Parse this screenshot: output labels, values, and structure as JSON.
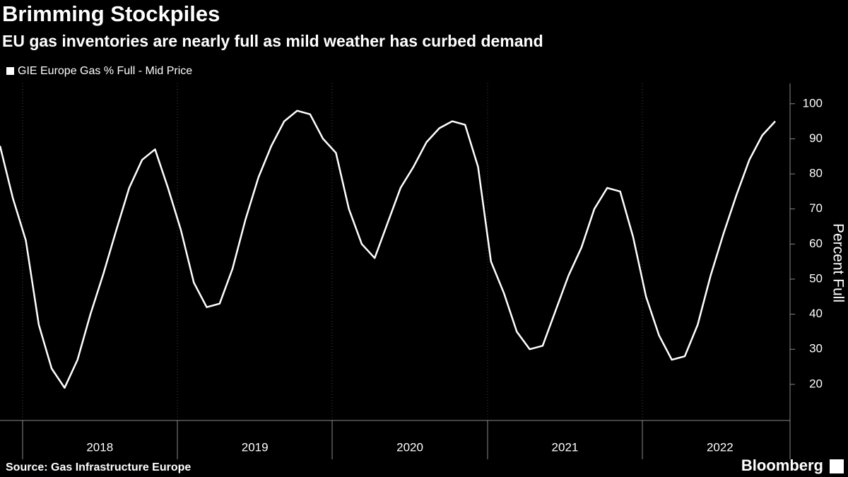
{
  "chart_data": {
    "type": "line",
    "title": "Brimming Stockpiles",
    "subtitle": "EU gas inventories are nearly full as mild weather has curbed demand",
    "y_label": "Percent Full",
    "source": "Source: Gas Infrastructure Europe",
    "brand": "Bloomberg",
    "categories": [
      null,
      null,
      null,
      null,
      null,
      null,
      null,
      null,
      "2018",
      null,
      null,
      null,
      null,
      null,
      null,
      null,
      null,
      null,
      null,
      null,
      "2019",
      null,
      null,
      null,
      null,
      null,
      null,
      null,
      null,
      null,
      null,
      null,
      "2020",
      null,
      null,
      null,
      null,
      null,
      null,
      null,
      null,
      null,
      null,
      null,
      "2021",
      null,
      null,
      null,
      null,
      null,
      null,
      null,
      null,
      null,
      null,
      null,
      "2022",
      null,
      null,
      null,
      null
    ],
    "series": [
      {
        "name": "GIE Europe Gas % Full - Mid Price",
        "color": "#ffffff",
        "values": [
          88,
          73,
          61,
          37,
          24.5,
          19,
          27,
          40,
          51.5,
          64,
          76,
          84,
          87,
          76,
          64,
          49,
          42,
          43,
          53,
          67,
          79,
          88,
          95,
          98,
          97,
          90,
          86,
          70,
          60,
          56,
          66,
          76,
          82,
          89,
          93,
          95,
          94,
          82,
          55,
          46,
          35,
          30,
          31,
          41,
          51,
          59,
          70,
          76,
          75,
          62,
          45,
          34,
          27,
          28,
          37,
          51,
          63,
          74,
          84,
          91,
          95
        ]
      }
    ],
    "ylim": [
      9.7,
      105.8
    ],
    "yticks": [
      20,
      30,
      40,
      50,
      60,
      70,
      80,
      90,
      100
    ],
    "grid": false
  }
}
